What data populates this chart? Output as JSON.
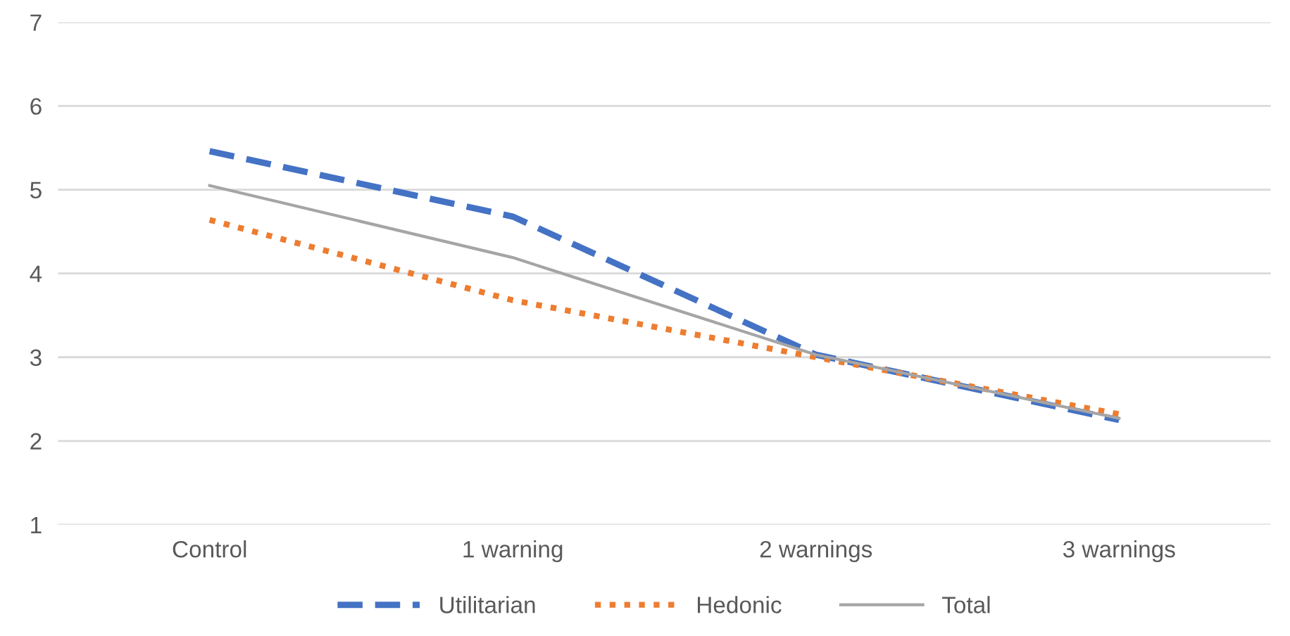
{
  "chart_data": {
    "type": "line",
    "categories": [
      "Control",
      "1 warning",
      "2 warnings",
      "3 warnings"
    ],
    "series": [
      {
        "name": "Utilitarian",
        "color": "#4472c4",
        "line_style": "dashed",
        "values": [
          5.46,
          4.68,
          3.03,
          2.25
        ]
      },
      {
        "name": "Hedonic",
        "color": "#ed7d31",
        "line_style": "dotted",
        "values": [
          4.64,
          3.68,
          3.0,
          2.32
        ]
      },
      {
        "name": "Total",
        "color": "#a5a5a5",
        "line_style": "solid",
        "values": [
          5.05,
          4.19,
          3.03,
          2.27
        ]
      }
    ],
    "ylim": [
      1,
      7
    ],
    "yticks": [
      1,
      2,
      3,
      4,
      5,
      6,
      7
    ],
    "grid": "y",
    "legend": "bottom",
    "marker": "none"
  }
}
